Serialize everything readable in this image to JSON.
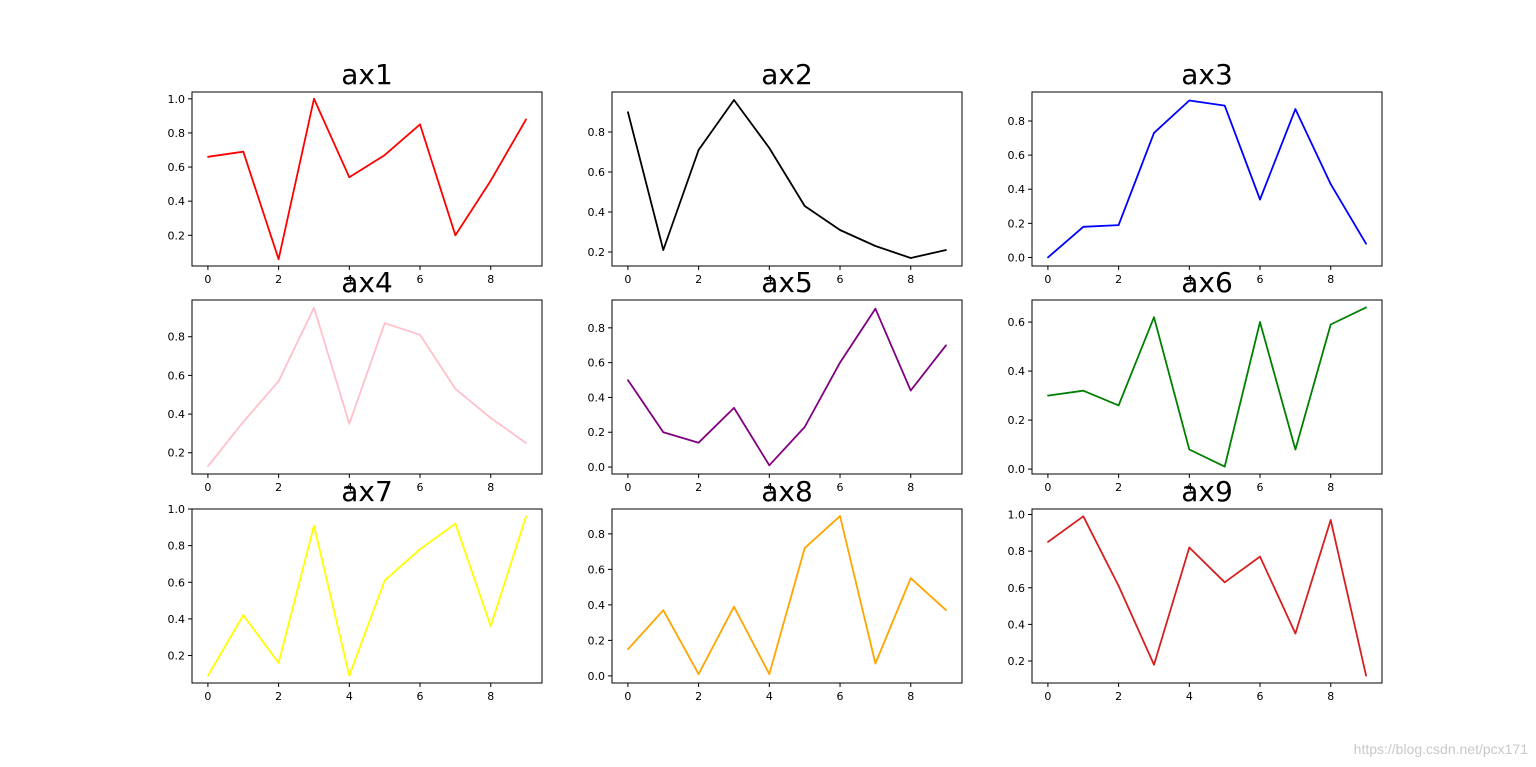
{
  "watermark": "https://blog.csdn.net/pcx171",
  "chart_data": [
    {
      "type": "line",
      "title": "ax1",
      "color": "#ff0000",
      "x": [
        0,
        1,
        2,
        3,
        4,
        5,
        6,
        7,
        8,
        9
      ],
      "values": [
        0.66,
        0.69,
        0.06,
        1.0,
        0.54,
        0.67,
        0.85,
        0.2,
        0.52,
        0.88
      ],
      "xticks": [
        0,
        2,
        4,
        6,
        8
      ],
      "yticks": [
        0.2,
        0.4,
        0.6,
        0.8,
        1.0
      ],
      "yticklabels": [
        "0.2",
        "0.4",
        "0.6",
        "0.8",
        "1.0"
      ],
      "ylim": [
        0.02,
        1.04
      ],
      "xlim": [
        -0.45,
        9.45
      ]
    },
    {
      "type": "line",
      "title": "ax2",
      "color": "#000000",
      "x": [
        0,
        1,
        2,
        3,
        4,
        5,
        6,
        7,
        8,
        9
      ],
      "values": [
        0.9,
        0.21,
        0.71,
        0.96,
        0.72,
        0.43,
        0.31,
        0.23,
        0.17,
        0.21
      ],
      "xticks": [
        0,
        2,
        4,
        6,
        8
      ],
      "yticks": [
        0.2,
        0.4,
        0.6,
        0.8
      ],
      "yticklabels": [
        "0.2",
        "0.4",
        "0.6",
        "0.8"
      ],
      "ylim": [
        0.13,
        1.0
      ],
      "xlim": [
        -0.45,
        9.45
      ]
    },
    {
      "type": "line",
      "title": "ax3",
      "color": "#0000ff",
      "x": [
        0,
        1,
        2,
        3,
        4,
        5,
        6,
        7,
        8,
        9
      ],
      "values": [
        0.0,
        0.18,
        0.19,
        0.73,
        0.92,
        0.89,
        0.34,
        0.87,
        0.43,
        0.08
      ],
      "xticks": [
        0,
        2,
        4,
        6,
        8
      ],
      "yticks": [
        0.0,
        0.2,
        0.4,
        0.6,
        0.8
      ],
      "yticklabels": [
        "0.0",
        "0.2",
        "0.4",
        "0.6",
        "0.8"
      ],
      "ylim": [
        -0.05,
        0.97
      ],
      "xlim": [
        -0.45,
        9.45
      ]
    },
    {
      "type": "line",
      "title": "ax4",
      "color": "#ffc0cb",
      "x": [
        0,
        1,
        2,
        3,
        4,
        5,
        6,
        7,
        8,
        9
      ],
      "values": [
        0.13,
        0.36,
        0.57,
        0.95,
        0.35,
        0.87,
        0.81,
        0.53,
        0.38,
        0.25
      ],
      "xticks": [
        0,
        2,
        4,
        6,
        8
      ],
      "yticks": [
        0.2,
        0.4,
        0.6,
        0.8
      ],
      "yticklabels": [
        "0.2",
        "0.4",
        "0.6",
        "0.8"
      ],
      "ylim": [
        0.09,
        0.99
      ],
      "xlim": [
        -0.45,
        9.45
      ]
    },
    {
      "type": "line",
      "title": "ax5",
      "color": "#800080",
      "x": [
        0,
        1,
        2,
        3,
        4,
        5,
        6,
        7,
        8,
        9
      ],
      "values": [
        0.5,
        0.2,
        0.14,
        0.34,
        0.01,
        0.23,
        0.6,
        0.91,
        0.44,
        0.7
      ],
      "xticks": [
        0,
        2,
        4,
        6,
        8
      ],
      "yticks": [
        0.0,
        0.2,
        0.4,
        0.6,
        0.8
      ],
      "yticklabels": [
        "0.0",
        "0.2",
        "0.4",
        "0.6",
        "0.8"
      ],
      "ylim": [
        -0.04,
        0.96
      ],
      "xlim": [
        -0.45,
        9.45
      ]
    },
    {
      "type": "line",
      "title": "ax6",
      "color": "#008000",
      "x": [
        0,
        1,
        2,
        3,
        4,
        5,
        6,
        7,
        8,
        9
      ],
      "values": [
        0.3,
        0.32,
        0.26,
        0.62,
        0.08,
        0.01,
        0.6,
        0.08,
        0.59,
        0.66
      ],
      "xticks": [
        0,
        2,
        4,
        6,
        8
      ],
      "yticks": [
        0.0,
        0.2,
        0.4,
        0.6
      ],
      "yticklabels": [
        "0.0",
        "0.2",
        "0.4",
        "0.6"
      ],
      "ylim": [
        -0.02,
        0.69
      ],
      "xlim": [
        -0.45,
        9.45
      ]
    },
    {
      "type": "line",
      "title": "ax7",
      "color": "#ffff00",
      "x": [
        0,
        1,
        2,
        3,
        4,
        5,
        6,
        7,
        8,
        9
      ],
      "values": [
        0.09,
        0.42,
        0.16,
        0.91,
        0.09,
        0.61,
        0.78,
        0.92,
        0.36,
        0.96
      ],
      "xticks": [
        0,
        2,
        4,
        6,
        8
      ],
      "yticks": [
        0.2,
        0.4,
        0.6,
        0.8,
        1.0
      ],
      "yticklabels": [
        "0.2",
        "0.4",
        "0.6",
        "0.8",
        "1.0"
      ],
      "ylim": [
        0.05,
        1.0
      ],
      "xlim": [
        -0.45,
        9.45
      ]
    },
    {
      "type": "line",
      "title": "ax8",
      "color": "#ffa500",
      "x": [
        0,
        1,
        2,
        3,
        4,
        5,
        6,
        7,
        8,
        9
      ],
      "values": [
        0.15,
        0.37,
        0.01,
        0.39,
        0.01,
        0.72,
        0.9,
        0.07,
        0.55,
        0.37
      ],
      "xticks": [
        0,
        2,
        4,
        6,
        8
      ],
      "yticks": [
        0.0,
        0.2,
        0.4,
        0.6,
        0.8
      ],
      "yticklabels": [
        "0.0",
        "0.2",
        "0.4",
        "0.6",
        "0.8"
      ],
      "ylim": [
        -0.04,
        0.94
      ],
      "xlim": [
        -0.45,
        9.45
      ]
    },
    {
      "type": "line",
      "title": "ax9",
      "color": "#d62020",
      "x": [
        0,
        1,
        2,
        3,
        4,
        5,
        6,
        7,
        8,
        9
      ],
      "values": [
        0.85,
        0.99,
        0.61,
        0.18,
        0.82,
        0.63,
        0.77,
        0.35,
        0.97,
        0.12
      ],
      "xticks": [
        0,
        2,
        4,
        6,
        8
      ],
      "yticks": [
        0.2,
        0.4,
        0.6,
        0.8,
        1.0
      ],
      "yticklabels": [
        "0.2",
        "0.4",
        "0.6",
        "0.8",
        "1.0"
      ],
      "ylim": [
        0.08,
        1.03
      ],
      "xlim": [
        -0.45,
        9.45
      ]
    }
  ]
}
